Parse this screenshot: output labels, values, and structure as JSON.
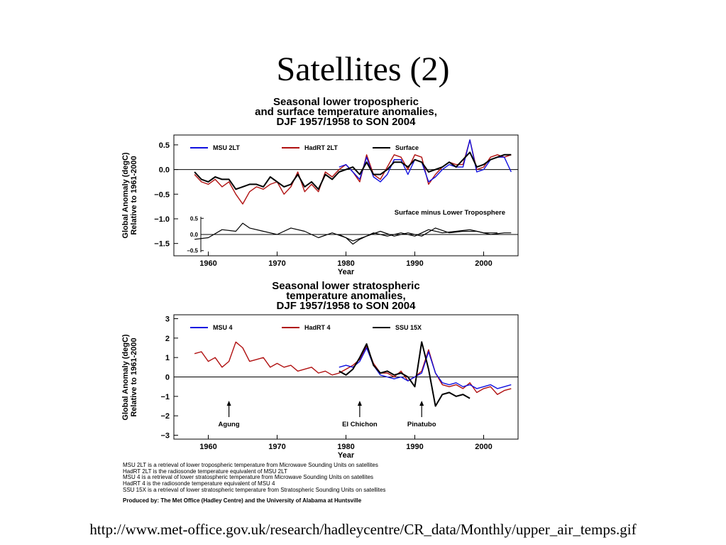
{
  "slide": {
    "title": "Satellites (2)",
    "source_url": "http://www.met-office.gov.uk/research/hadleycentre/CR_data/Monthly/upper_air_temps.gif"
  },
  "notes": [
    "MSU 2LT is a retrieval of lower tropospheric temperature from Microwave Sounding Units on satellites",
    "HadRT 2LT is the radiosonde temperature equivalent of MSU 2LT",
    "MSU 4 is a retrieval of lower stratospheric temperature from Microwave Sounding Units on satellites",
    "HadRT 4 is the radiosonde temperature equivalent of MSU 4",
    "SSU 15X is a retrieval of lower stratospheric temperature from Stratospheric Sounding Units on satellites"
  ],
  "produced_by": "Produced by:  The Met Office (Hadley Centre) and the University of Alabama at Huntsville",
  "colors": {
    "msu": "#1010e0",
    "hadrt": "#b01010",
    "ssu": "#000000",
    "surface": "#000000"
  },
  "chart_data": [
    {
      "type": "line",
      "title_lines": [
        "Seasonal lower tropospheric",
        "and surface temperature anomalies,",
        "DJF 1957/1958 to SON 2004"
      ],
      "xlabel": "Year",
      "ylabel_lines": [
        "Global Anomaly (degC)",
        "Relative to 1961-2000"
      ],
      "xlim": [
        1955,
        2005
      ],
      "ylim": [
        -1.75,
        0.7
      ],
      "x_ticks": [
        1960,
        1970,
        1980,
        1990,
        2000
      ],
      "y_ticks": [
        {
          "v": 0.5,
          "t": "0.5"
        },
        {
          "v": 0.0,
          "t": "0.0"
        },
        {
          "v": -0.5,
          "t": "−0.5"
        },
        {
          "v": -1.0,
          "t": "−1.0"
        },
        {
          "v": -1.5,
          "t": "−1.5"
        }
      ],
      "legend": [
        {
          "name": "MSU 2LT",
          "color": "#1010e0"
        },
        {
          "name": "HadRT 2LT",
          "color": "#b01010"
        },
        {
          "name": "Surface",
          "color": "#000000"
        }
      ],
      "series": [
        {
          "name": "HadRT 2LT",
          "color": "#b01010",
          "x": [
            1958,
            1959,
            1960,
            1961,
            1962,
            1963,
            1964,
            1965,
            1966,
            1967,
            1968,
            1969,
            1970,
            1971,
            1972,
            1973,
            1974,
            1975,
            1976,
            1977,
            1978,
            1979,
            1980,
            1981,
            1982,
            1983,
            1984,
            1985,
            1986,
            1987,
            1988,
            1989,
            1990,
            1991,
            1992,
            1993,
            1994,
            1995,
            1996,
            1997,
            1998,
            1999,
            2000,
            2001,
            2002,
            2003,
            2004
          ],
          "y": [
            -0.1,
            -0.25,
            -0.3,
            -0.2,
            -0.35,
            -0.25,
            -0.5,
            -0.7,
            -0.45,
            -0.35,
            -0.4,
            -0.3,
            -0.25,
            -0.5,
            -0.35,
            -0.05,
            -0.45,
            -0.3,
            -0.45,
            -0.05,
            -0.15,
            0.0,
            0.1,
            -0.05,
            -0.25,
            0.3,
            -0.1,
            -0.2,
            0.05,
            0.3,
            0.25,
            0.0,
            0.3,
            0.25,
            -0.3,
            -0.1,
            0.05,
            0.15,
            0.1,
            0.1,
            0.6,
            0.0,
            0.05,
            0.25,
            0.3,
            0.25,
            0.3
          ]
        },
        {
          "name": "MSU 2LT",
          "color": "#1010e0",
          "x": [
            1979,
            1980,
            1981,
            1982,
            1983,
            1984,
            1985,
            1986,
            1987,
            1988,
            1989,
            1990,
            1991,
            1992,
            1993,
            1994,
            1995,
            1996,
            1997,
            1998,
            1999,
            2000,
            2001,
            2002,
            2003,
            2004
          ],
          "y": [
            0.05,
            0.1,
            -0.05,
            -0.2,
            0.25,
            -0.15,
            -0.25,
            -0.1,
            0.2,
            0.2,
            -0.1,
            0.2,
            0.15,
            -0.25,
            -0.15,
            0.0,
            0.1,
            0.05,
            0.05,
            0.6,
            -0.05,
            0.0,
            0.2,
            0.25,
            0.25,
            -0.05
          ]
        },
        {
          "name": "Surface",
          "color": "#000000",
          "x": [
            1958,
            1959,
            1960,
            1961,
            1962,
            1963,
            1964,
            1965,
            1966,
            1967,
            1968,
            1969,
            1970,
            1971,
            1972,
            1973,
            1974,
            1975,
            1976,
            1977,
            1978,
            1979,
            1980,
            1981,
            1982,
            1983,
            1984,
            1985,
            1986,
            1987,
            1988,
            1989,
            1990,
            1991,
            1992,
            1993,
            1994,
            1995,
            1996,
            1997,
            1998,
            1999,
            2000,
            2001,
            2002,
            2003,
            2004
          ],
          "y": [
            -0.05,
            -0.2,
            -0.25,
            -0.15,
            -0.2,
            -0.2,
            -0.4,
            -0.35,
            -0.3,
            -0.3,
            -0.35,
            -0.15,
            -0.25,
            -0.35,
            -0.3,
            -0.1,
            -0.35,
            -0.25,
            -0.4,
            -0.1,
            -0.2,
            -0.05,
            0.0,
            0.05,
            -0.1,
            0.15,
            -0.1,
            -0.1,
            0.0,
            0.15,
            0.15,
            0.05,
            0.2,
            0.15,
            -0.05,
            0.0,
            0.05,
            0.15,
            0.05,
            0.2,
            0.35,
            0.05,
            0.1,
            0.2,
            0.25,
            0.3,
            0.3
          ]
        }
      ],
      "inset": {
        "title": "Surface minus Lower Troposphere",
        "ylim": [
          -0.55,
          0.55
        ],
        "y_ticks": [
          {
            "v": 0.5,
            "t": "0.5"
          },
          {
            "v": 0.0,
            "t": "0.0"
          },
          {
            "v": -0.5,
            "t": "−0.5"
          }
        ],
        "series": [
          {
            "name": "Surface minus HadRT 2LT",
            "color": "#000000",
            "x": [
              1958,
              1960,
              1962,
              1964,
              1965,
              1966,
              1968,
              1970,
              1972,
              1974,
              1976,
              1978,
              1980,
              1981,
              1982,
              1984,
              1986,
              1988,
              1990,
              1992,
              1994,
              1996,
              1998,
              2000,
              2002
            ],
            "y": [
              -0.15,
              -0.1,
              0.15,
              0.1,
              0.35,
              0.2,
              0.1,
              0.0,
              0.2,
              0.1,
              -0.1,
              0.05,
              -0.1,
              -0.3,
              -0.15,
              0.05,
              -0.05,
              0.05,
              -0.05,
              0.15,
              0.05,
              0.1,
              0.15,
              0.05,
              0.05
            ]
          },
          {
            "name": "Surface minus MSU 2LT",
            "color": "#000000",
            "x": [
              1979,
              1981,
              1983,
              1985,
              1987,
              1989,
              1991,
              1993,
              1995,
              1997,
              1999,
              2001,
              2003,
              2004
            ],
            "y": [
              0.0,
              -0.2,
              -0.05,
              0.1,
              -0.05,
              0.05,
              -0.05,
              0.2,
              0.05,
              0.1,
              0.1,
              0.0,
              0.05,
              0.05
            ]
          }
        ]
      }
    },
    {
      "type": "line",
      "title_lines": [
        "Seasonal lower stratospheric",
        "temperature anomalies,",
        "DJF 1957/1958 to SON 2004"
      ],
      "xlabel": "Year",
      "ylabel_lines": [
        "Global Anomaly (degC)",
        "Relative to 1961-2000"
      ],
      "xlim": [
        1955,
        2005
      ],
      "ylim": [
        -3.2,
        3.2
      ],
      "x_ticks": [
        1960,
        1970,
        1980,
        1990,
        2000
      ],
      "y_ticks": [
        {
          "v": 3,
          "t": "3"
        },
        {
          "v": 2,
          "t": "2"
        },
        {
          "v": 1,
          "t": "1"
        },
        {
          "v": 0,
          "t": "0"
        },
        {
          "v": -1,
          "t": "−1"
        },
        {
          "v": -2,
          "t": "−2"
        },
        {
          "v": -3,
          "t": "−3"
        }
      ],
      "legend": [
        {
          "name": "MSU 4",
          "color": "#1010e0"
        },
        {
          "name": "HadRT 4",
          "color": "#b01010"
        },
        {
          "name": "SSU 15X",
          "color": "#000000"
        }
      ],
      "series": [
        {
          "name": "HadRT 4",
          "color": "#b01010",
          "x": [
            1958,
            1959,
            1960,
            1961,
            1962,
            1963,
            1964,
            1965,
            1966,
            1967,
            1968,
            1969,
            1970,
            1971,
            1972,
            1973,
            1974,
            1975,
            1976,
            1977,
            1978,
            1979,
            1980,
            1981,
            1982,
            1983,
            1984,
            1985,
            1986,
            1987,
            1988,
            1989,
            1990,
            1991,
            1992,
            1993,
            1994,
            1995,
            1996,
            1997,
            1998,
            1999,
            2000,
            2001,
            2002,
            2003,
            2004
          ],
          "y": [
            1.2,
            1.3,
            0.8,
            1.0,
            0.5,
            0.8,
            1.8,
            1.5,
            0.8,
            0.9,
            1.0,
            0.5,
            0.7,
            0.5,
            0.6,
            0.3,
            0.4,
            0.5,
            0.2,
            0.3,
            0.1,
            0.2,
            0.4,
            0.6,
            0.9,
            1.6,
            0.7,
            0.2,
            0.2,
            0.0,
            0.3,
            -0.2,
            0.0,
            0.3,
            1.4,
            0.2,
            -0.4,
            -0.5,
            -0.4,
            -0.6,
            -0.3,
            -0.8,
            -0.6,
            -0.5,
            -0.9,
            -0.7,
            -0.6
          ]
        },
        {
          "name": "MSU 4",
          "color": "#1010e0",
          "x": [
            1979,
            1980,
            1981,
            1982,
            1983,
            1984,
            1985,
            1986,
            1987,
            1988,
            1989,
            1990,
            1991,
            1992,
            1993,
            1994,
            1995,
            1996,
            1997,
            1998,
            1999,
            2000,
            2001,
            2002,
            2003,
            2004
          ],
          "y": [
            0.5,
            0.6,
            0.5,
            0.8,
            1.5,
            0.6,
            0.1,
            0.0,
            -0.1,
            0.0,
            -0.2,
            0.0,
            0.2,
            1.3,
            0.2,
            -0.3,
            -0.4,
            -0.3,
            -0.5,
            -0.4,
            -0.6,
            -0.5,
            -0.4,
            -0.6,
            -0.5,
            -0.4
          ]
        },
        {
          "name": "SSU 15X",
          "color": "#000000",
          "x": [
            1979,
            1980,
            1981,
            1982,
            1983,
            1984,
            1985,
            1986,
            1987,
            1988,
            1989,
            1990,
            1991,
            1992,
            1993,
            1994,
            1995,
            1996,
            1997,
            1998
          ],
          "y": [
            0.3,
            0.1,
            0.4,
            1.0,
            1.7,
            0.6,
            0.2,
            0.3,
            0.1,
            0.2,
            0.0,
            -0.5,
            1.8,
            0.4,
            -1.5,
            -0.9,
            -0.8,
            -1.0,
            -0.9,
            -1.1
          ]
        }
      ],
      "annotations": [
        {
          "text": "Agung",
          "x": 1963
        },
        {
          "text": "El Chichon",
          "x": 1982
        },
        {
          "text": "Pinatubo",
          "x": 1991
        }
      ]
    }
  ]
}
